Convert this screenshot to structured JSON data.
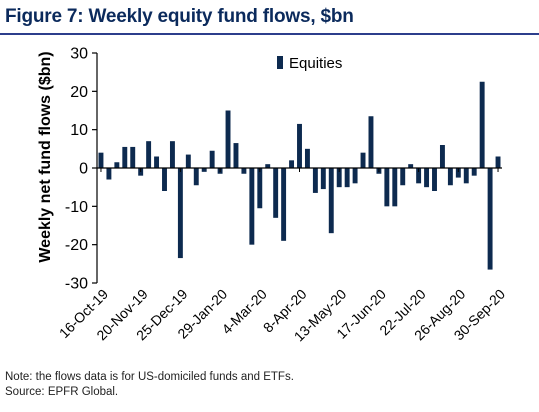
{
  "figure_title": "Figure 7: Weekly equity fund flows, $bn",
  "notes": {
    "note": "Note: the flows data is for US-domiciled funds and ETFs.",
    "source": "Source: EPFR Global."
  },
  "colors": {
    "bar": "#0d2a4f",
    "title": "#0b2a5c",
    "rule": "#2c3e8c",
    "axis": "#000000"
  },
  "chart_data": {
    "type": "bar",
    "title": "",
    "xlabel": "",
    "ylabel": "Weekly net fund flows ($bn)",
    "ylim": [
      -30,
      30
    ],
    "yticks": [
      -30,
      -20,
      -10,
      0,
      10,
      20,
      30
    ],
    "grid": false,
    "legend_position": "top-right",
    "xtick_labels": [
      "16-Oct-19",
      "20-Nov-19",
      "25-Dec-19",
      "29-Jan-20",
      "4-Mar-20",
      "8-Apr-20",
      "13-May-20",
      "17-Jun-20",
      "22-Jul-20",
      "26-Aug-20",
      "30-Sep-20"
    ],
    "xtick_every": 5,
    "series": [
      {
        "name": "Equities",
        "values": [
          4,
          -3,
          1.5,
          5.5,
          5.5,
          -2,
          7,
          3,
          -6,
          7,
          -23.5,
          3.5,
          -4.5,
          -1,
          4.5,
          -1.5,
          15,
          6.5,
          -1.5,
          -20,
          -10.5,
          1,
          -13,
          -19,
          2,
          11.5,
          5,
          -6.5,
          -5.5,
          -17,
          -5,
          -5,
          -4,
          4,
          13.5,
          -1.5,
          -10,
          -10,
          -4.5,
          1,
          -4,
          -5,
          -6,
          6,
          -4.5,
          -2.5,
          -4,
          -2,
          22.5,
          -26.5,
          3
        ]
      }
    ]
  }
}
